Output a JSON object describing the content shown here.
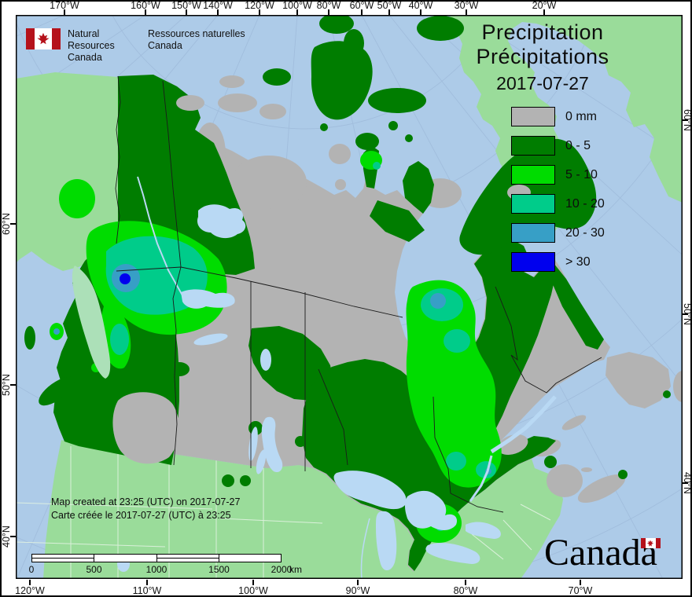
{
  "colors": {
    "ocean": "#adcbe8",
    "foreign_land": "#9adc9a",
    "foreign_pale": "#ace0b8",
    "precip_0": "#b3b3b3",
    "precip_0_5": "#007d00",
    "precip_5_10": "#00dc00",
    "precip_10_20": "#00cc8a",
    "precip_20_30": "#379fc6",
    "precip_30": "#0000ee",
    "lake": "#b9d9f4",
    "graticule": "#9db9d9",
    "boundary": "#1a1a1a",
    "state_line": "#e2f3e2",
    "frame": "#000000",
    "flag_red": "#b5121b"
  },
  "logo": {
    "en_line1": "Natural Resources",
    "en_line2": "Canada",
    "fr_line1": "Ressources naturelles",
    "fr_line2": "Canada"
  },
  "title": {
    "line1": "Precipitation",
    "line2": "Précipitations",
    "date": "2017-07-27"
  },
  "legend": {
    "items": [
      {
        "label": "0 mm",
        "color": "#b3b3b3"
      },
      {
        "label": "0 - 5",
        "color": "#007d00"
      },
      {
        "label": "5 - 10",
        "color": "#00dc00"
      },
      {
        "label": "10 - 20",
        "color": "#00cc8a"
      },
      {
        "label": "20 - 30",
        "color": "#379fc6"
      },
      {
        "label": "> 30",
        "color": "#0000ee"
      }
    ]
  },
  "footer": {
    "line1": "Map created at 23:25 (UTC) on 2017-07-27",
    "line2": "Carte créée le 2017-07-27 (UTC) à 23:25"
  },
  "scalebar": {
    "ticks": [
      "0",
      "500",
      "1000",
      "1500",
      "2000"
    ],
    "unit": "km"
  },
  "axes": {
    "top": [
      "170°W",
      "160°W",
      "150°W",
      "140°W",
      "120°W",
      "100°W",
      "80°W",
      "60°W",
      "50°W",
      "40°W",
      "30°W",
      "20°W"
    ],
    "bottom": [
      "120°W",
      "110°W",
      "100°W",
      "90°W",
      "80°W",
      "70°W"
    ],
    "left": [
      "60°N",
      "50°N",
      "40°N"
    ],
    "right": [
      "60°N",
      "50°N",
      "40°N"
    ]
  },
  "wordmark": {
    "text": "Canada"
  },
  "map": {
    "subject": "Precipitation / Précipitations",
    "region": "Canada",
    "units": "mm",
    "date": "2017-07-27"
  }
}
